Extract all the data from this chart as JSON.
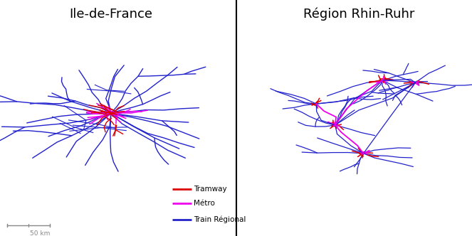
{
  "title_left": "Ile-de-France",
  "title_right": "Région Rhin-Ruhr",
  "title_fontsize": 13,
  "fig_width": 6.63,
  "fig_height": 3.32,
  "background_color": "#ffffff",
  "legend_items": [
    {
      "label": "Tramway",
      "color": "#dd0000",
      "lw": 2
    },
    {
      "label": "Métro",
      "color": "#ee00ee",
      "lw": 2
    },
    {
      "label": "Train Régional",
      "color": "#2222cc",
      "lw": 2
    }
  ],
  "scalebar_label": "50 km",
  "map_color_blue": "#2222cc",
  "map_color_red": "#dd0000",
  "map_color_magenta": "#ee00ee"
}
